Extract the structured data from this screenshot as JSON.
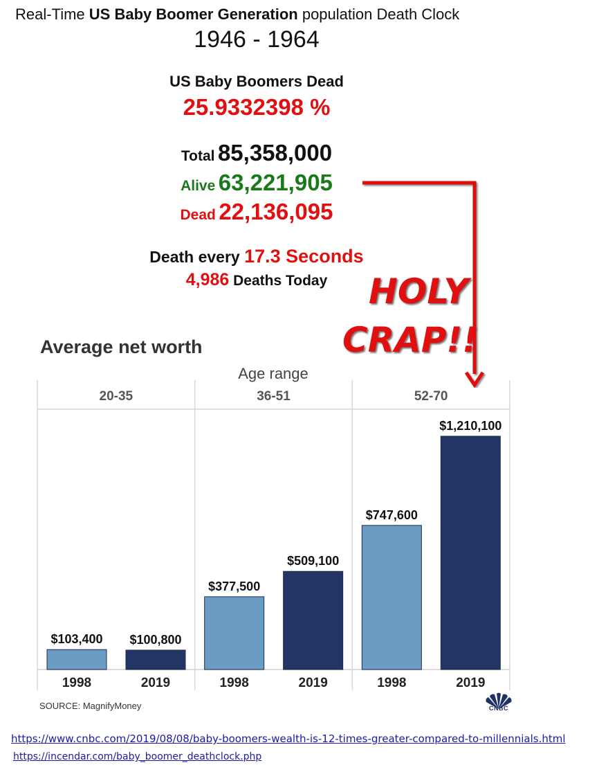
{
  "clock": {
    "title_pre": "Real-Time ",
    "title_bold": "US Baby Boomer Generation",
    "title_post": " population Death Clock",
    "years": "1946 - 1964",
    "dead_label": "US Baby Boomers Dead",
    "dead_percent": "25.9332398 %",
    "total_label": "Total",
    "total_value": "85,358,000",
    "alive_label": "Alive",
    "alive_value": "63,221,905",
    "dead_count_label": "Dead",
    "dead_count_value": "22,136,095",
    "rate_pre": "Death every",
    "rate_value": "17.3 Seconds",
    "today_value": "4,986",
    "today_label": "Deaths Today"
  },
  "annotation": {
    "line1": "HOLY",
    "line2": "CRAP!!",
    "arrow_color": "#e01010"
  },
  "chart_data": {
    "type": "bar",
    "title": "Average net worth",
    "group_axis_label": "Age range",
    "groups": [
      "20-35",
      "36-51",
      "52-70"
    ],
    "categories": [
      "1998",
      "2019"
    ],
    "series": [
      {
        "group": "20-35",
        "values": [
          103400,
          100800
        ],
        "labels": [
          "$103,400",
          "$100,800"
        ]
      },
      {
        "group": "36-51",
        "values": [
          377500,
          509100
        ],
        "labels": [
          "$377,500",
          "$509,100"
        ]
      },
      {
        "group": "52-70",
        "values": [
          747600,
          1210100
        ],
        "labels": [
          "$747,600",
          "$1,210,100"
        ]
      }
    ],
    "colors": {
      "1998": "#6b9dc4",
      "2019": "#223564"
    },
    "ylim": [
      0,
      1210100
    ],
    "grid": false,
    "source": "SOURCE: MagnifyMoney"
  },
  "logo": {
    "text": "CNBC",
    "icon": "cnbc-peacock-icon"
  },
  "links": [
    "https://www.cnbc.com/2019/08/08/baby-boomers-wealth-is-12-times-greater-compared-to-millennials.html",
    "https://incendar.com/baby_boomer_deathclock.php"
  ]
}
